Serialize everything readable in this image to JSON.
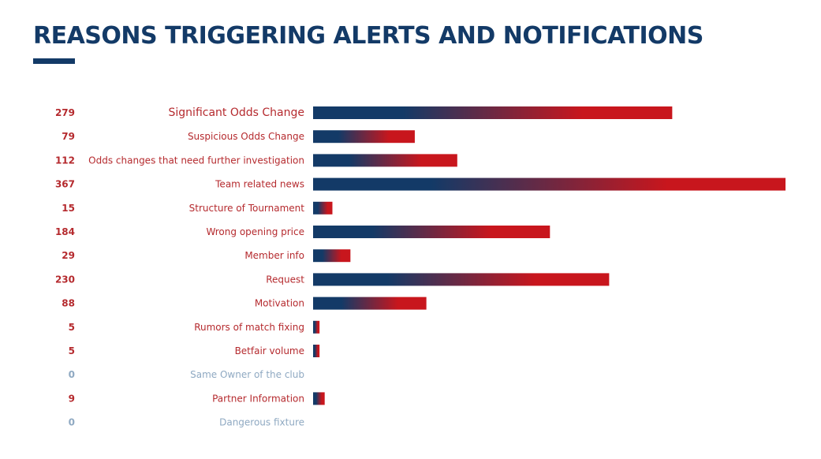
{
  "header": {
    "title": "REASONS TRIGGERING ALERTS AND NOTIFICATIONS"
  },
  "colors": {
    "title": "#133a67",
    "bar_start": "#133a67",
    "bar_end": "#c8161d",
    "label_active": "#b52a2e",
    "label_zero": "#8fa9c2"
  },
  "chart_data": {
    "type": "bar",
    "orientation": "horizontal",
    "title": "REASONS TRIGGERING ALERTS AND NOTIFICATIONS",
    "xlabel": "",
    "ylabel": "",
    "xlim": [
      0,
      367
    ],
    "grid": false,
    "legend": "none",
    "categories": [
      "Significant Odds Change",
      "Suspicious Odds Change",
      "Odds changes that need further investigation",
      "Team related news",
      "Structure of Tournament",
      "Wrong opening price",
      "Member info",
      "Request",
      "Motivation",
      "Rumors of match fixing",
      "Betfair volume",
      "Same Owner of the club",
      "Partner Information",
      "Dangerous fixture"
    ],
    "values": [
      279,
      79,
      112,
      367,
      15,
      184,
      29,
      230,
      88,
      5,
      5,
      0,
      9,
      0
    ]
  }
}
